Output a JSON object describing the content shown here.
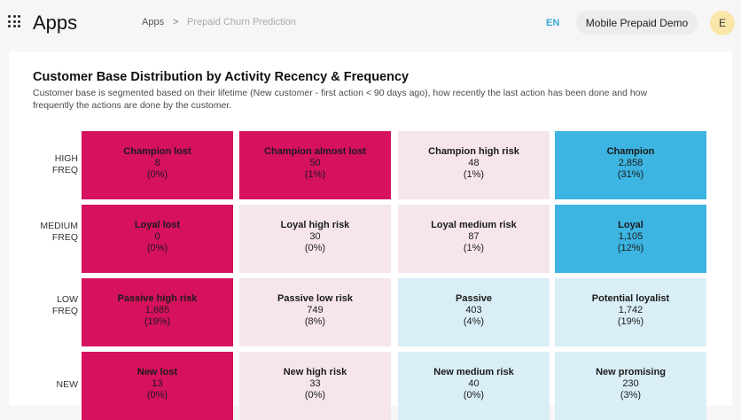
{
  "header": {
    "app_title": "Apps",
    "breadcrumb": {
      "root": "Apps",
      "separator": ">",
      "current": "Prepaid Churn Prediction"
    },
    "language": "EN",
    "demo_button": "Mobile Prepaid Demo",
    "avatar_initial": "E"
  },
  "card": {
    "title": "Customer Base Distribution by Activity Recency & Frequency",
    "description": "Customer base is segmented based on their lifetime (New customer - first action < 90 days ago), how recently the last action has been done and how frequently the actions are done by the customer."
  },
  "rows": [
    {
      "label_line1": "HIGH",
      "label_line2": "FREQ"
    },
    {
      "label_line1": "MEDIUM",
      "label_line2": "FREQ"
    },
    {
      "label_line1": "LOW",
      "label_line2": "FREQ"
    },
    {
      "label_line1": "NEW",
      "label_line2": ""
    }
  ],
  "segments": [
    [
      {
        "name": "Champion lost",
        "count": "8",
        "pct": "(0%)"
      },
      {
        "name": "Champion almost lost",
        "count": "50",
        "pct": "(1%)"
      },
      {
        "name": "Champion high risk",
        "count": "48",
        "pct": "(1%)"
      },
      {
        "name": "Champion",
        "count": "2,858",
        "pct": "(31%)"
      }
    ],
    [
      {
        "name": "Loyal lost",
        "count": "0",
        "pct": "(0%)"
      },
      {
        "name": "Loyal high risk",
        "count": "30",
        "pct": "(0%)"
      },
      {
        "name": "Loyal medium risk",
        "count": "87",
        "pct": "(1%)"
      },
      {
        "name": "Loyal",
        "count": "1,105",
        "pct": "(12%)"
      }
    ],
    [
      {
        "name": "Passive high risk",
        "count": "1,685",
        "pct": "(19%)"
      },
      {
        "name": "Passive low risk",
        "count": "749",
        "pct": "(8%)"
      },
      {
        "name": "Passive",
        "count": "403",
        "pct": "(4%)"
      },
      {
        "name": "Potential loyalist",
        "count": "1,742",
        "pct": "(19%)"
      }
    ],
    [
      {
        "name": "New lost",
        "count": "13",
        "pct": "(0%)"
      },
      {
        "name": "New high risk",
        "count": "33",
        "pct": "(0%)"
      },
      {
        "name": "New medium risk",
        "count": "40",
        "pct": "(0%)"
      },
      {
        "name": "New promising",
        "count": "230",
        "pct": "(3%)"
      }
    ]
  ],
  "colors": {
    "high_risk": "#d6115d",
    "medium_risk": "#f6e6ec",
    "top_segment": "#3db4e1",
    "healthy": "#d9eef7",
    "accent": "#37a7d4"
  }
}
